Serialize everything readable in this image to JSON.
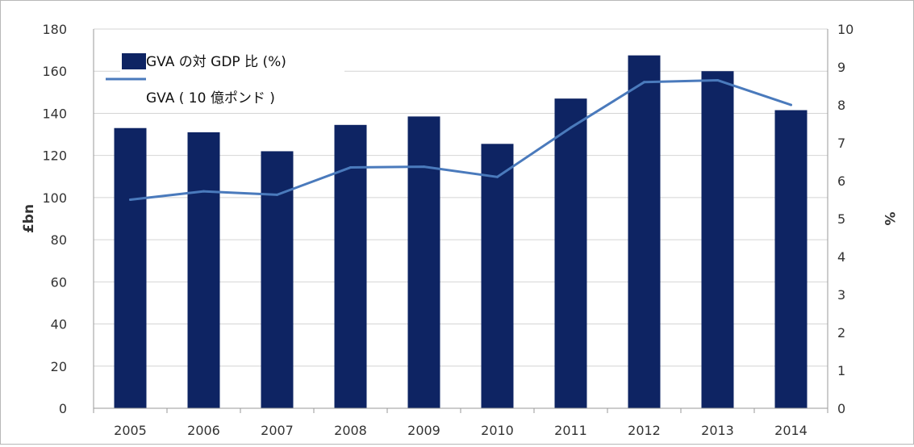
{
  "chart_data": {
    "type": "bar",
    "categories": [
      "2005",
      "2006",
      "2007",
      "2008",
      "2009",
      "2010",
      "2011",
      "2012",
      "2013",
      "2014"
    ],
    "series": [
      {
        "name": "GVA の対 GDP 比 (%)",
        "type": "bar",
        "axis": "left",
        "color": "#0e2463",
        "values": [
          133,
          131,
          122,
          134.5,
          138.5,
          125.5,
          147,
          167.5,
          160,
          141.5
        ]
      },
      {
        "name": "GVA ( 10 億ポンド )",
        "type": "line",
        "axis": "right",
        "color": "#4a7abc",
        "values": [
          5.5,
          5.72,
          5.63,
          6.35,
          6.37,
          6.1,
          7.4,
          8.6,
          8.65,
          8.0
        ]
      }
    ],
    "ylabel": "£bn",
    "y2label": "%",
    "ylim": [
      0,
      180
    ],
    "y2lim": [
      0,
      10
    ],
    "yticks": [
      "0",
      "20",
      "40",
      "60",
      "80",
      "100",
      "120",
      "140",
      "160",
      "180"
    ],
    "y2ticks": [
      "0",
      "1",
      "2",
      "3",
      "4",
      "5",
      "6",
      "7",
      "8",
      "9",
      "10"
    ],
    "grid": true,
    "legend_position": "top-left"
  }
}
